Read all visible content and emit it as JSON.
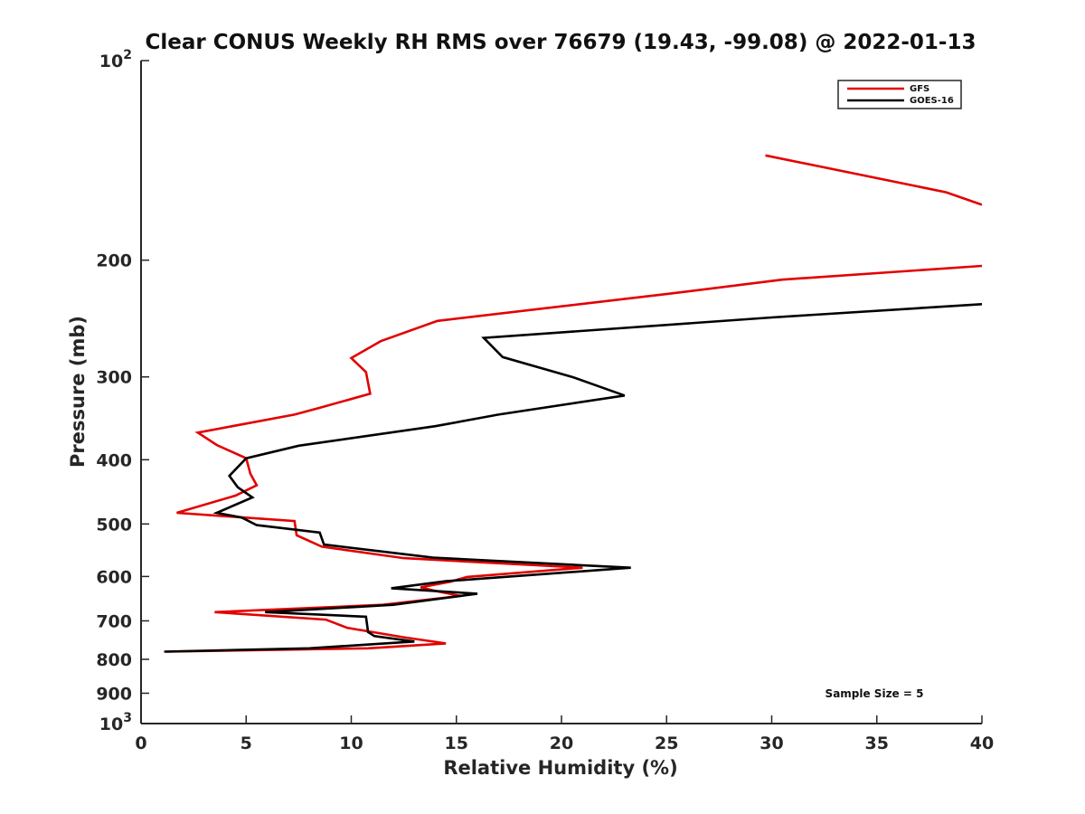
{
  "chart_data": {
    "type": "line",
    "title": "Clear CONUS Weekly RH RMS over 76679 (19.43, -99.08) @ 2022-01-13",
    "xlabel": "Relative Humidity (%)",
    "ylabel": "Pressure (mb)",
    "xlim": [
      0,
      40
    ],
    "ylim": [
      100,
      1000
    ],
    "y_scale": "log",
    "y_reversed": true,
    "x_ticks": [
      "0",
      "5",
      "10",
      "15",
      "20",
      "25",
      "30",
      "35",
      "40"
    ],
    "y_ticks": [
      {
        "value": 100,
        "base": "10",
        "exp": "2"
      },
      {
        "value": 200,
        "label": "200"
      },
      {
        "value": 300,
        "label": "300"
      },
      {
        "value": 400,
        "label": "400"
      },
      {
        "value": 500,
        "label": "500"
      },
      {
        "value": 600,
        "label": "600"
      },
      {
        "value": 700,
        "label": "700"
      },
      {
        "value": 800,
        "label": "800"
      },
      {
        "value": 900,
        "label": "900"
      },
      {
        "value": 1000,
        "base": "10",
        "exp": "3"
      }
    ],
    "grid": false,
    "legend_position": "top-right",
    "series": [
      {
        "name": "GFS",
        "color": "#e30000",
        "segments": [
          [
            [
              29.7,
              139
            ],
            [
              38.3,
              158
            ],
            [
              40,
              165
            ]
          ],
          [
            [
              40,
              204
            ],
            [
              30.5,
              214
            ],
            [
              25,
              225
            ],
            [
              14.1,
              247
            ],
            [
              11.4,
              265
            ],
            [
              10.0,
              281
            ],
            [
              10.7,
              295
            ],
            [
              10.9,
              318
            ],
            [
              8.5,
              334
            ],
            [
              7.3,
              342
            ],
            [
              2.7,
              364
            ],
            [
              3.6,
              380
            ],
            [
              5.0,
              398
            ],
            [
              5.2,
              420
            ],
            [
              5.5,
              437
            ],
            [
              4.5,
              453
            ],
            [
              1.7,
              481
            ],
            [
              7.3,
              495
            ],
            [
              7.4,
              520
            ],
            [
              8.6,
              541
            ],
            [
              12.5,
              563
            ],
            [
              21.0,
              582
            ],
            [
              15.5,
              601
            ],
            [
              14.7,
              611
            ],
            [
              13.3,
              623
            ],
            [
              14.0,
              631
            ],
            [
              15.2,
              642
            ],
            [
              11.5,
              662
            ],
            [
              3.5,
              679
            ],
            [
              8.8,
              697
            ],
            [
              9.8,
              717
            ],
            [
              12.5,
              741
            ],
            [
              14.5,
              757
            ],
            [
              10.8,
              770
            ],
            [
              1.2,
              779
            ]
          ]
        ]
      },
      {
        "name": "GOES-16",
        "color": "#000000",
        "segments": [
          [
            [
              40,
              233
            ],
            [
              30.0,
              244
            ],
            [
              16.3,
              262
            ],
            [
              17.2,
              280
            ],
            [
              20.5,
              300
            ],
            [
              23.0,
              320
            ],
            [
              17.0,
              342
            ],
            [
              14.0,
              356
            ],
            [
              7.5,
              381
            ],
            [
              5.0,
              398
            ],
            [
              4.2,
              423
            ],
            [
              4.6,
              440
            ],
            [
              5.3,
              456
            ],
            [
              3.6,
              481
            ],
            [
              4.8,
              489
            ],
            [
              5.5,
              502
            ],
            [
              8.5,
              515
            ],
            [
              8.7,
              537
            ],
            [
              13.9,
              562
            ],
            [
              23.3,
              582
            ],
            [
              14.5,
              610
            ],
            [
              11.9,
              625
            ],
            [
              16.0,
              637
            ],
            [
              12.0,
              662
            ],
            [
              5.9,
              679
            ],
            [
              10.7,
              690
            ],
            [
              10.8,
              728
            ],
            [
              11.1,
              738
            ],
            [
              13.0,
              752
            ],
            [
              8.0,
              770
            ],
            [
              1.1,
              779
            ]
          ]
        ]
      }
    ],
    "annotation": "Sample Size = 5"
  }
}
